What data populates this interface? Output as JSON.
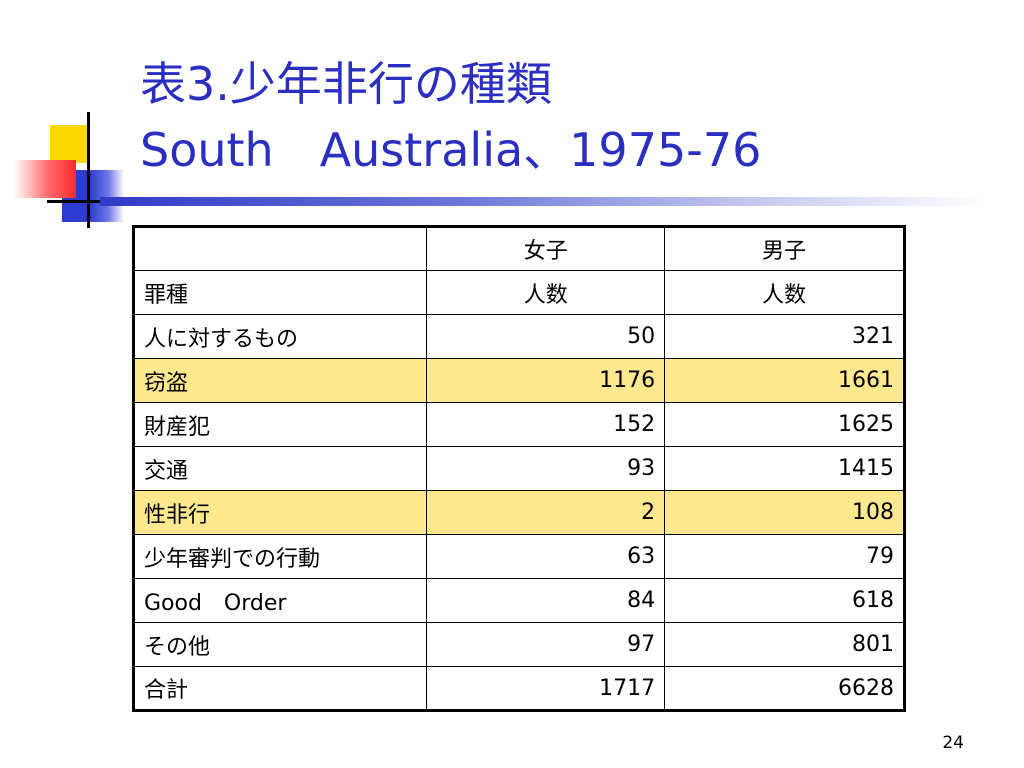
{
  "slide": {
    "title_line1": "表3.少年非行の種類",
    "title_line2": "South　Australia、1975-76",
    "page_number": "24"
  },
  "table": {
    "header1": [
      "",
      "女子",
      "男子"
    ],
    "header2": [
      "罪種",
      "人数",
      "人数"
    ],
    "rows": [
      {
        "label": "人に対するもの",
        "female": "50",
        "male": "321"
      },
      {
        "label": "窃盗",
        "female": "1176",
        "male": "1661"
      },
      {
        "label": "財産犯",
        "female": "152",
        "male": "1625"
      },
      {
        "label": "交通",
        "female": "93",
        "male": "1415"
      },
      {
        "label": "性非行",
        "female": "2",
        "male": "108"
      },
      {
        "label": "少年審判での行動",
        "female": "63",
        "male": "79"
      },
      {
        "label": "Good　Order",
        "female": "84",
        "male": "618"
      },
      {
        "label": "その他",
        "female": "97",
        "male": "801"
      },
      {
        "label": "合計",
        "female": "1717",
        "male": "6628"
      }
    ]
  },
  "colors": {
    "title": "#2a2fc2",
    "highlight_row": "#ffe88e",
    "accent_blue": "#2e3bd0",
    "accent_yellow": "#ffd800",
    "accent_red": "#ff2a2a"
  }
}
